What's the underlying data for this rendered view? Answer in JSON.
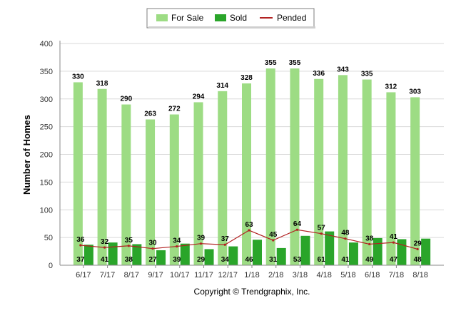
{
  "chart_data": {
    "type": "bar",
    "categories": [
      "6/17",
      "7/17",
      "8/17",
      "9/17",
      "10/17",
      "11/17",
      "12/17",
      "1/18",
      "2/18",
      "3/18",
      "4/18",
      "5/18",
      "6/18",
      "7/18",
      "8/18"
    ],
    "series": [
      {
        "name": "For Sale",
        "kind": "bar",
        "color": "#9ddc84",
        "values": [
          330,
          318,
          290,
          263,
          272,
          294,
          314,
          328,
          355,
          355,
          336,
          343,
          335,
          312,
          303
        ]
      },
      {
        "name": "Sold",
        "kind": "bar",
        "color": "#2aa52a",
        "values": [
          37,
          41,
          38,
          27,
          39,
          29,
          34,
          46,
          31,
          53,
          61,
          41,
          49,
          47,
          48
        ]
      },
      {
        "name": "Pended",
        "kind": "line",
        "color": "#b22222",
        "values": [
          36,
          32,
          35,
          30,
          34,
          39,
          37,
          63,
          45,
          64,
          57,
          48,
          38,
          41,
          29
        ]
      }
    ],
    "ylabel": "Number of Homes",
    "ylim": [
      0,
      400
    ],
    "yticks": [
      0,
      50,
      100,
      150,
      200,
      250,
      300,
      350,
      400
    ],
    "grid": true,
    "legend_position": "top-center",
    "footer": "Copyright © Trendgraphix, Inc."
  }
}
